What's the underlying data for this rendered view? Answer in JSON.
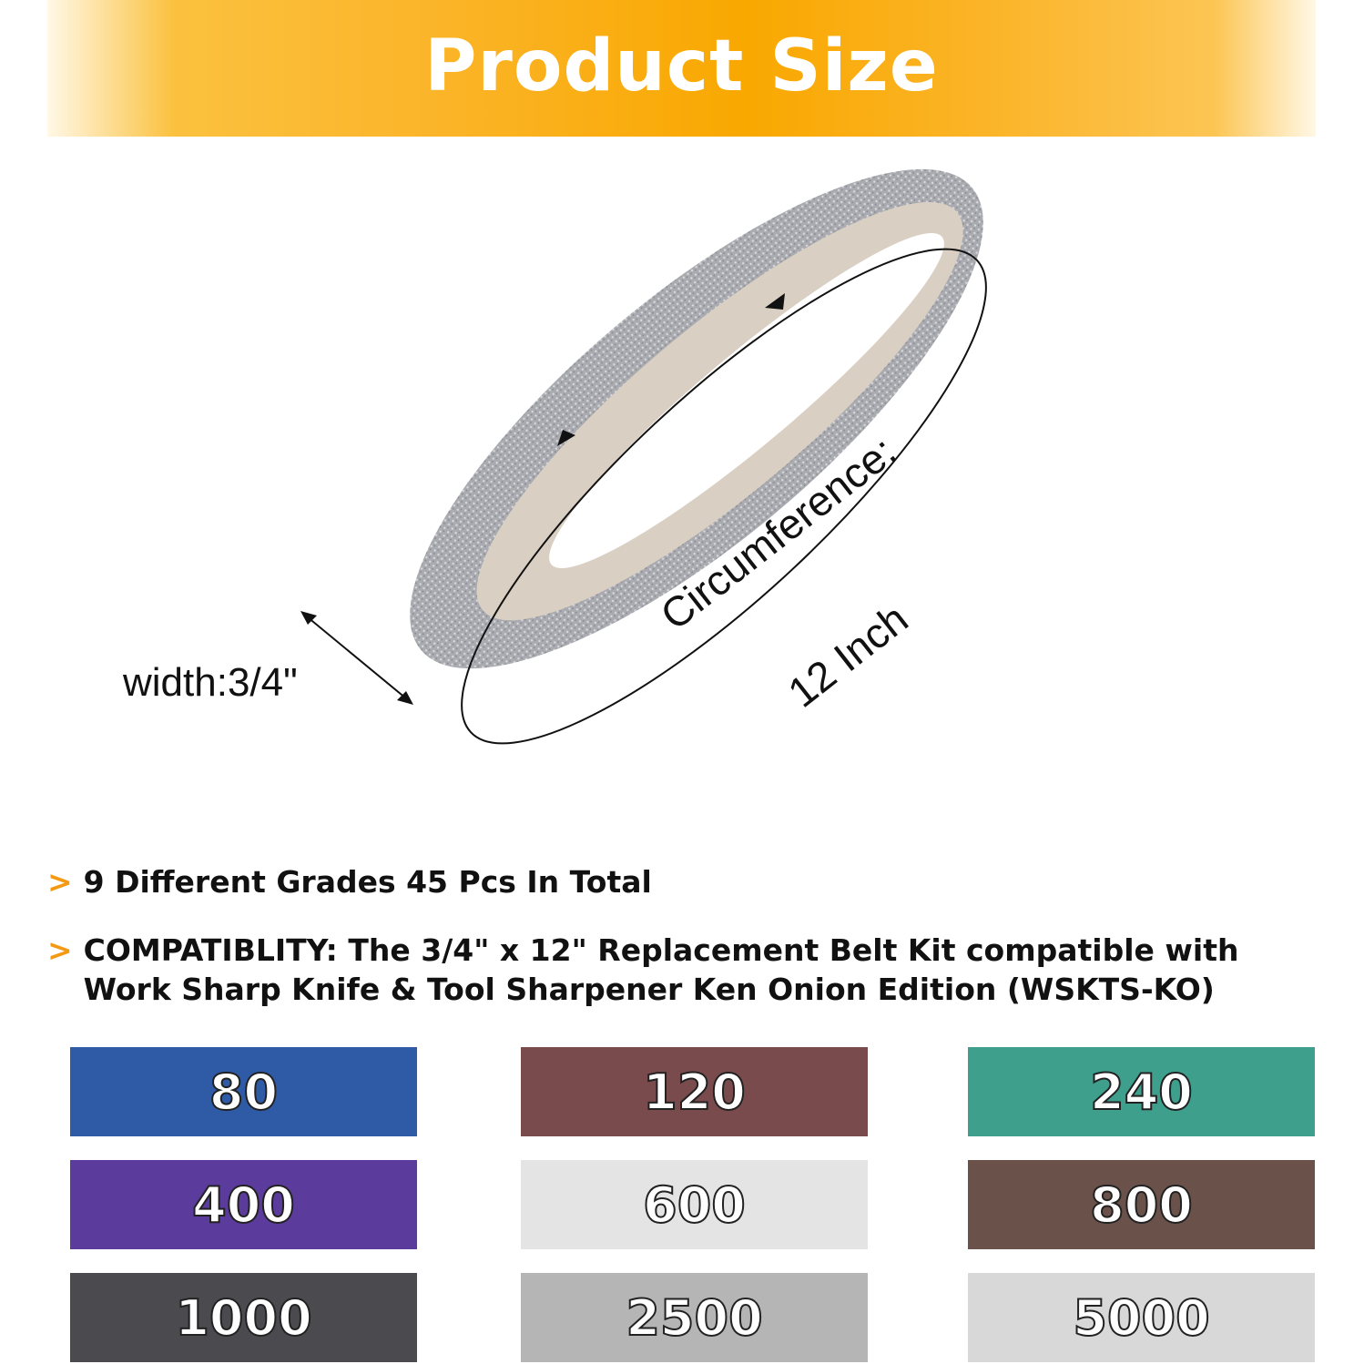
{
  "header": {
    "title": "Product Size"
  },
  "diagram": {
    "width_label": "width:3/4\"",
    "circumference_label": "Circumference:",
    "circumference_value": "12 Inch"
  },
  "bullets": [
    {
      "icon": "chevron-right-icon",
      "text": "9 Different Grades 45 Pcs In Total"
    },
    {
      "icon": "chevron-right-icon",
      "text": "COMPATIBLITY: The 3/4\" x 12\" Replacement Belt Kit compatible with",
      "text2": "Work Sharp Knife & Tool Sharpener Ken Onion Edition (WSKTS-KO)"
    }
  ],
  "accent_color": "#f9a800",
  "grits": [
    {
      "label": "80",
      "color": "#2f5ba6"
    },
    {
      "label": "120",
      "color": "#7a4b4d"
    },
    {
      "label": "240",
      "color": "#3f9f8d"
    },
    {
      "label": "400",
      "color": "#5b3b9c"
    },
    {
      "label": "600",
      "color": "#e4e4e4"
    },
    {
      "label": "800",
      "color": "#6a524b"
    },
    {
      "label": "1000",
      "color": "#4a4a4f"
    },
    {
      "label": "2500",
      "color": "#b5b5b5"
    },
    {
      "label": "5000",
      "color": "#d8d8d8"
    }
  ]
}
